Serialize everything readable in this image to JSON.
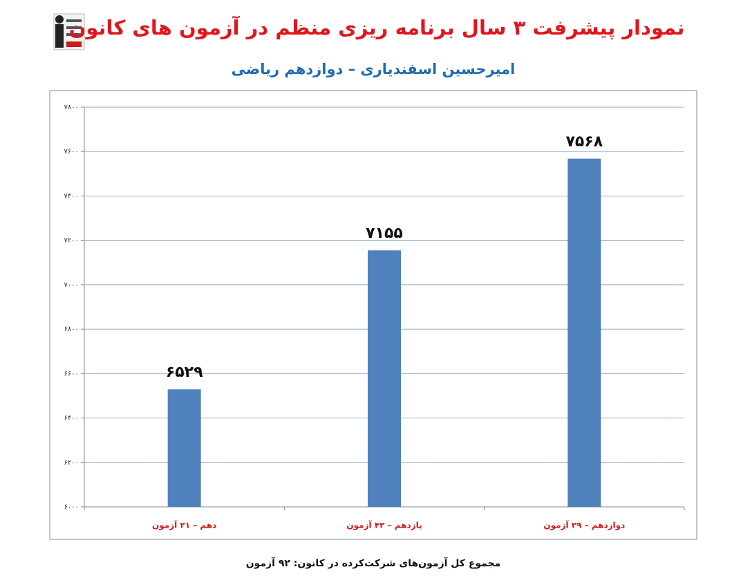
{
  "chart_data": {
    "type": "bar",
    "title": "نمودار پیشرفت ۳ سال برنامه ریزی منظم در آزمون های کانون",
    "subtitle": "امیرحسین اسفندیاری – دوازدهم ریاضی",
    "footer": "مجموع کل آزمون‌های شرکت‌کرده در کانون: ۹۲ آزمون",
    "categories": [
      "دهم – ۲۱ آزمون",
      "یازدهم – ۴۲ آزمون",
      "دوازدهم – ۲۹ آزمون"
    ],
    "values": [
      6529,
      7155,
      7568
    ],
    "value_labels": [
      "۶۵۲۹",
      "۷۱۵۵",
      "۷۵۶۸"
    ],
    "color": "#4f81bd",
    "ylim": [
      6000,
      7800
    ],
    "yticks": [
      {
        "value": 6000,
        "label": "۶۰۰۰"
      },
      {
        "value": 6200,
        "label": "۶۲۰۰"
      },
      {
        "value": 6400,
        "label": "۶۴۰۰"
      },
      {
        "value": 6600,
        "label": "۶۶۰۰"
      },
      {
        "value": 6800,
        "label": "۶۸۰۰"
      },
      {
        "value": 7000,
        "label": "۷۰۰۰"
      },
      {
        "value": 7200,
        "label": "۷۲۰۰"
      },
      {
        "value": 7400,
        "label": "۷۴۰۰"
      },
      {
        "value": 7600,
        "label": "۷۶۰۰"
      },
      {
        "value": 7800,
        "label": "۷۸۰۰"
      }
    ],
    "grid": true
  }
}
